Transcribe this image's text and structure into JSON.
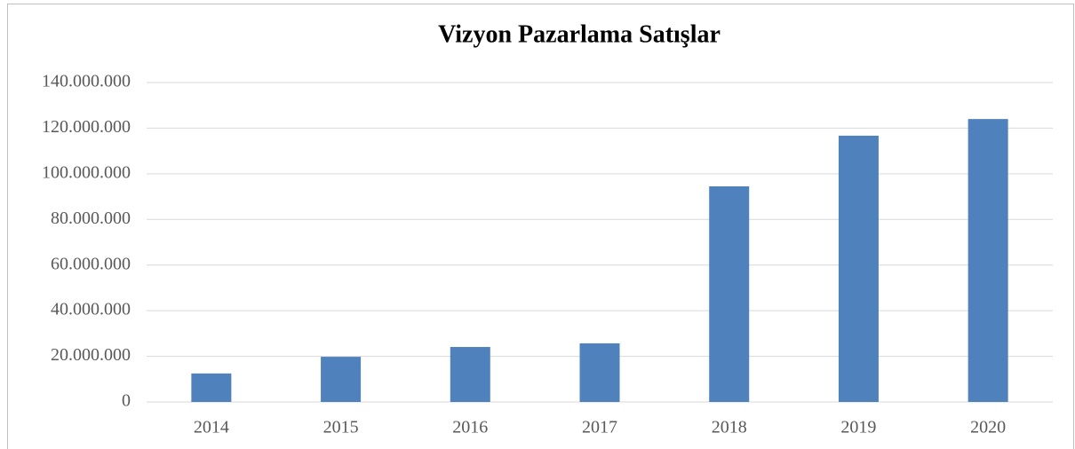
{
  "chart_data": {
    "type": "bar",
    "title": "Vizyon Pazarlama Satışlar",
    "categories": [
      "2014",
      "2015",
      "2016",
      "2017",
      "2018",
      "2019",
      "2020"
    ],
    "values": [
      12500000,
      19800000,
      24100000,
      25700000,
      94500000,
      116700000,
      124000000
    ],
    "color": "#4f81bd",
    "ylim": [
      0,
      140000000
    ],
    "yticks": [
      0,
      {
        "value": 20000000,
        "label": "20.000.000"
      },
      {
        "value": 40000000,
        "label": "40.000.000"
      },
      {
        "value": 60000000,
        "label": "60.000.000"
      },
      {
        "value": 80000000,
        "label": "80.000.000"
      },
      {
        "value": 100000000,
        "label": "100.000.000"
      },
      {
        "value": 120000000,
        "label": "120.000.000"
      },
      {
        "value": 140000000,
        "label": "140.000.000"
      }
    ],
    "grid": true
  }
}
